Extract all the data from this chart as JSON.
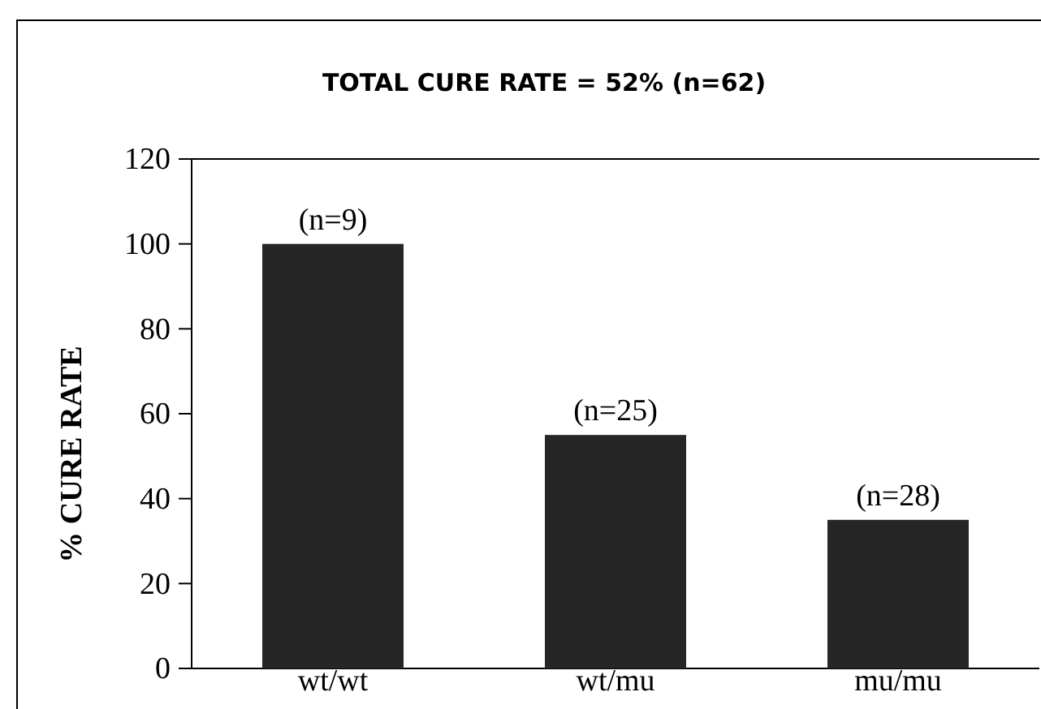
{
  "chart_data": {
    "type": "bar",
    "title": "TOTAL CURE RATE = 52% (n=62)",
    "ylabel": "% CURE RATE",
    "categories": [
      "wt/wt",
      "wt/mu",
      "mu/mu"
    ],
    "values": [
      100,
      55,
      35
    ],
    "color": "#262626",
    "annotations": [
      {
        "text": "(n=9)",
        "x": "wt/wt",
        "y": 100
      },
      {
        "text": "(n=25)",
        "x": "wt/mu",
        "y": 55
      },
      {
        "text": "(n=28)",
        "x": "mu/mu",
        "y": 35
      }
    ],
    "ylim": [
      0,
      120
    ],
    "yticks": [
      0,
      20,
      40,
      60,
      80,
      100,
      120
    ],
    "grid": false
  }
}
